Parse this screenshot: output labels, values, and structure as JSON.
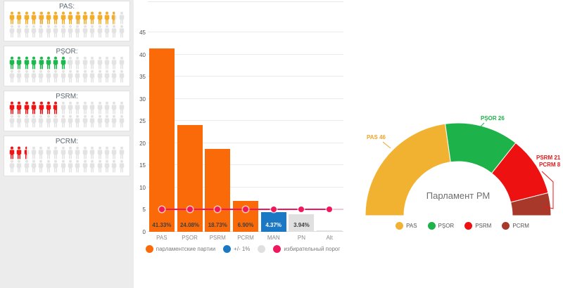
{
  "sidebar": {
    "total_seats": 101,
    "icons_per_row": 16,
    "rows_per_card": 2,
    "empty_icon_color": "#e3e3e3",
    "cards": [
      {
        "label": "PAS:",
        "party": "PAS",
        "seats": 46,
        "color": "#f2ae2b"
      },
      {
        "label": "PŞOR:",
        "party": "PŞOR",
        "seats": 26,
        "color": "#1db84d"
      },
      {
        "label": "PSRM:",
        "party": "PSRM",
        "seats": 21,
        "color": "#ed1515"
      },
      {
        "label": "PCRM:",
        "party": "PCRM",
        "seats": 8,
        "color": "#ed1515"
      }
    ]
  },
  "chart_data": [
    {
      "type": "bar",
      "title": "",
      "categories": [
        "PAS",
        "PŞOR",
        "PSRM",
        "PCRM",
        "MAN",
        "PN",
        "Alt"
      ],
      "values": [
        41.33,
        24.08,
        18.73,
        6.9,
        4.37,
        3.94,
        0.3
      ],
      "value_labels": [
        "41.33%",
        "24.08%",
        "18.73%",
        "6.90%",
        "4.37%",
        "3.94%",
        ""
      ],
      "bar_colors": [
        "#fb6a09",
        "#fb6a09",
        "#fb6a09",
        "#fb6a09",
        "#1b78c4",
        "#e0e0e0",
        "#e0e0e0"
      ],
      "value_label_colors": [
        "#414141",
        "#414141",
        "#414141",
        "#414141",
        "#ffffff",
        "#414141",
        ""
      ],
      "ylim": [
        0,
        45
      ],
      "ytick_step": 5,
      "grid": true,
      "threshold": {
        "value": 5,
        "color": "#f0175c",
        "label": "избирательный порог"
      },
      "legend_position": "bottom",
      "legend": [
        {
          "label": "парламентские партии",
          "color": "#fb6a09"
        },
        {
          "label": "+/- 1%",
          "color": "#1b78c4"
        },
        {
          "label": "",
          "color": "#e0e0e0"
        },
        {
          "label": "избирательный порог",
          "color": "#f0175c"
        }
      ]
    },
    {
      "type": "pie",
      "subtype": "half-donut-gauge",
      "title": "Парламент РМ",
      "total": 101,
      "segments": [
        {
          "label": "PAS 46",
          "name": "PAS",
          "value": 46,
          "color": "#f2b231",
          "label_color": "#f0a42a"
        },
        {
          "label": "PŞOR 26",
          "name": "PŞOR",
          "value": 26,
          "color": "#1db24a",
          "label_color": "#1db24a"
        },
        {
          "label": "PSRM 21",
          "name": "PSRM",
          "value": 21,
          "color": "#ee1111",
          "label_color": "#ed1515"
        },
        {
          "label": "PCRM 8",
          "name": "PCRM",
          "value": 8,
          "color": "#a8382a",
          "label_color": "#ed1515"
        }
      ],
      "legend_position": "bottom",
      "legend": [
        {
          "label": "PAS",
          "color": "#f2b231"
        },
        {
          "label": "PŞOR",
          "color": "#1db24a"
        },
        {
          "label": "PSRM",
          "color": "#ee1111"
        },
        {
          "label": "PCRM",
          "color": "#a8382a"
        }
      ]
    }
  ]
}
